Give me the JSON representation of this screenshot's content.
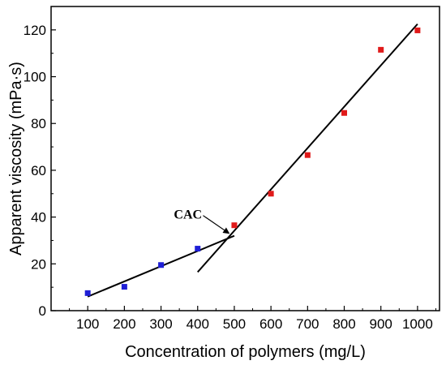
{
  "chart_data": {
    "type": "scatter",
    "title": "",
    "xlabel": "Concentration of polymers (mg/L)",
    "ylabel": "Apparent viscosity (mPa·s)",
    "xlim": [
      0,
      1060
    ],
    "ylim": [
      0,
      130
    ],
    "xticks": [
      100,
      200,
      300,
      400,
      500,
      600,
      700,
      800,
      900,
      1000
    ],
    "yticks": [
      0,
      20,
      40,
      60,
      80,
      100,
      120
    ],
    "grid": false,
    "legend": "none",
    "series": [
      {
        "color": "#1f1fd6",
        "marker": "square",
        "x": [
          100,
          200,
          300,
          400
        ],
        "y": [
          7.5,
          10.2,
          19.5,
          26.5
        ]
      },
      {
        "color": "#e01a1a",
        "marker": "square",
        "x": [
          500,
          600,
          700,
          800,
          900,
          1000
        ],
        "y": [
          36.5,
          50.0,
          66.5,
          84.5,
          111.5,
          119.8
        ]
      }
    ],
    "fit_lines": [
      {
        "x": [
          100,
          500
        ],
        "y": [
          6.0,
          32.0
        ],
        "color": "#000000"
      },
      {
        "x": [
          400,
          1000
        ],
        "y": [
          16.5,
          122.5
        ],
        "color": "#000000"
      }
    ],
    "annotations": [
      {
        "text": "CAC",
        "point_x": 490,
        "point_y": 32.0
      }
    ]
  }
}
